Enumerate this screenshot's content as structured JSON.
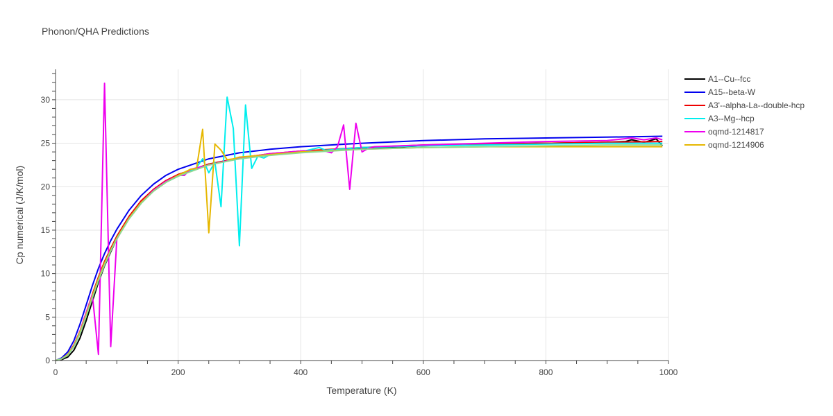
{
  "chart_data": {
    "type": "line",
    "title": "Phonon/QHA Predictions",
    "xlabel": "Temperature (K)",
    "ylabel": "Cp numerical (J/K/mol)",
    "xlim": [
      0,
      1000
    ],
    "ylim": [
      0,
      33.5
    ],
    "xticks": [
      0,
      200,
      400,
      600,
      800,
      1000
    ],
    "yticks": [
      0,
      5,
      10,
      15,
      20,
      25,
      30
    ],
    "grid": true,
    "legend_position": "top-right outside",
    "series": [
      {
        "name": "A1--Cu--fcc",
        "color": "#000000",
        "x": [
          0,
          10,
          20,
          30,
          40,
          50,
          60,
          70,
          80,
          90,
          100,
          120,
          140,
          160,
          180,
          200,
          250,
          300,
          350,
          400,
          500,
          600,
          700,
          800,
          900,
          930,
          940,
          960,
          980,
          990
        ],
        "y": [
          0,
          0.1,
          0.4,
          1.2,
          2.6,
          4.6,
          6.8,
          9.0,
          10.9,
          12.5,
          14.0,
          16.4,
          18.2,
          19.6,
          20.6,
          21.4,
          22.6,
          23.3,
          23.7,
          24.0,
          24.4,
          24.7,
          24.9,
          25.0,
          25.1,
          25.2,
          25.4,
          25.1,
          25.5,
          24.7
        ]
      },
      {
        "name": "A15--beta-W",
        "color": "#0000ee",
        "x": [
          0,
          10,
          20,
          30,
          40,
          50,
          60,
          70,
          80,
          90,
          100,
          120,
          140,
          160,
          180,
          200,
          250,
          300,
          350,
          400,
          500,
          600,
          700,
          800,
          900,
          990
        ],
        "y": [
          0,
          0.3,
          1.0,
          2.3,
          4.2,
          6.4,
          8.6,
          10.6,
          12.3,
          13.8,
          15.1,
          17.3,
          19.0,
          20.3,
          21.3,
          22.0,
          23.2,
          23.9,
          24.3,
          24.6,
          25.0,
          25.3,
          25.5,
          25.6,
          25.7,
          25.8
        ]
      },
      {
        "name": "A3'--alpha-La--double-hcp",
        "color": "#ee0000",
        "x": [
          0,
          10,
          20,
          30,
          40,
          50,
          60,
          70,
          80,
          90,
          100,
          120,
          140,
          160,
          180,
          200,
          250,
          300,
          350,
          400,
          500,
          600,
          700,
          800,
          900,
          990
        ],
        "y": [
          0,
          0.2,
          0.7,
          1.8,
          3.4,
          5.5,
          7.6,
          9.6,
          11.4,
          12.9,
          14.3,
          16.6,
          18.4,
          19.7,
          20.7,
          21.4,
          22.6,
          23.3,
          23.8,
          24.1,
          24.5,
          24.8,
          24.9,
          25.0,
          25.1,
          25.2
        ]
      },
      {
        "name": "A3--Mg--hcp",
        "color": "#00eeee",
        "x": [
          0,
          10,
          20,
          30,
          40,
          50,
          60,
          70,
          80,
          90,
          100,
          120,
          140,
          160,
          180,
          200,
          210,
          220,
          230,
          240,
          250,
          260,
          270,
          280,
          290,
          300,
          310,
          320,
          330,
          340,
          350,
          400,
          430,
          440,
          500,
          600,
          700,
          800,
          900,
          990
        ],
        "y": [
          0,
          0.2,
          0.7,
          1.7,
          3.3,
          5.3,
          7.4,
          9.4,
          11.2,
          12.7,
          14.1,
          16.4,
          18.2,
          19.5,
          20.5,
          21.2,
          21.5,
          21.8,
          22.2,
          23.2,
          21.6,
          22.8,
          17.7,
          30.3,
          26.7,
          13.2,
          29.4,
          22.1,
          23.5,
          23.3,
          23.7,
          24.0,
          24.5,
          24.2,
          24.5,
          24.7,
          24.8,
          24.9,
          25.0,
          25.0
        ]
      },
      {
        "name": "oqmd-1214817",
        "color": "#ee00ee",
        "x": [
          0,
          10,
          20,
          30,
          40,
          50,
          60,
          70,
          80,
          90,
          100,
          110,
          120,
          140,
          160,
          180,
          200,
          210,
          220,
          300,
          350,
          400,
          440,
          450,
          460,
          470,
          480,
          490,
          500,
          510,
          520,
          600,
          700,
          800,
          900,
          940,
          960,
          980,
          990
        ],
        "y": [
          0,
          0.2,
          0.7,
          1.7,
          3.4,
          5.5,
          7.6,
          0.7,
          31.9,
          1.6,
          14.0,
          15.2,
          16.4,
          18.2,
          19.6,
          20.6,
          21.3,
          21.3,
          22.0,
          23.3,
          23.8,
          24.1,
          24.1,
          23.9,
          24.6,
          27.1,
          19.7,
          27.3,
          24.0,
          24.4,
          24.6,
          24.8,
          25.0,
          25.2,
          25.3,
          25.6,
          25.4,
          25.6,
          25.4
        ]
      },
      {
        "name": "oqmd-1214906",
        "color": "#e6b700",
        "x": [
          0,
          10,
          20,
          30,
          40,
          50,
          60,
          70,
          80,
          90,
          100,
          120,
          140,
          160,
          180,
          200,
          220,
          230,
          240,
          250,
          260,
          270,
          280,
          290,
          300,
          350,
          400,
          500,
          600,
          700,
          800,
          900,
          990
        ],
        "y": [
          0,
          0.2,
          0.7,
          1.7,
          3.3,
          5.3,
          7.4,
          9.4,
          11.2,
          12.7,
          14.1,
          16.4,
          18.2,
          19.5,
          20.5,
          21.3,
          22.0,
          22.1,
          26.6,
          14.7,
          24.9,
          24.2,
          23.1,
          23.2,
          23.4,
          23.7,
          24.0,
          24.3,
          24.5,
          24.6,
          24.6,
          24.6,
          24.6
        ]
      },
      {
        "name": "",
        "color": "#90d890",
        "x": [
          0,
          10,
          20,
          30,
          40,
          50,
          60,
          70,
          80,
          90,
          100,
          120,
          140,
          160,
          180,
          200,
          250,
          300,
          350,
          400,
          500,
          600,
          700,
          800,
          900,
          990
        ],
        "y": [
          0,
          0.2,
          0.6,
          1.6,
          3.1,
          5.1,
          7.2,
          9.2,
          11.0,
          12.6,
          14.0,
          16.3,
          18.1,
          19.5,
          20.5,
          21.2,
          22.5,
          23.2,
          23.6,
          23.9,
          24.3,
          24.5,
          24.6,
          24.7,
          24.8,
          24.8
        ]
      }
    ]
  }
}
